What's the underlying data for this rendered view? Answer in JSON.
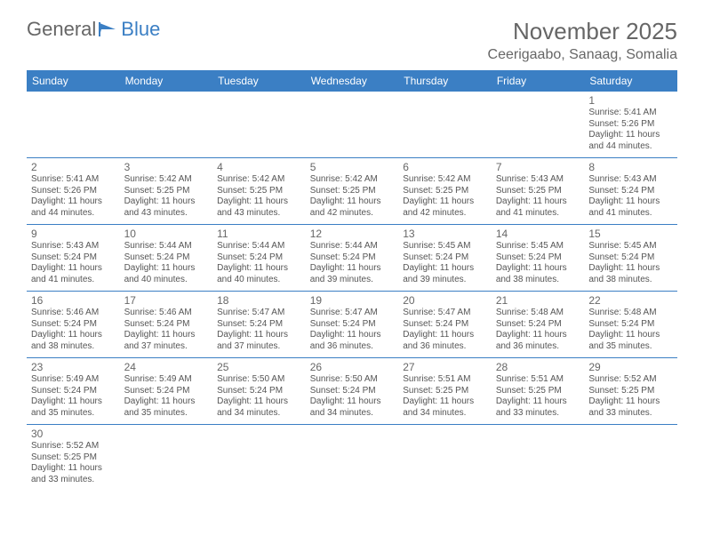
{
  "logo": {
    "text1": "General",
    "text2": "Blue"
  },
  "title": "November 2025",
  "location": "Ceerigaabo, Sanaag, Somalia",
  "colors": {
    "header_bg": "#3b7fc4",
    "header_text": "#ffffff",
    "cell_border": "#3b7fc4",
    "text": "#555555",
    "title": "#666666"
  },
  "dayHeaders": [
    "Sunday",
    "Monday",
    "Tuesday",
    "Wednesday",
    "Thursday",
    "Friday",
    "Saturday"
  ],
  "weeks": [
    [
      null,
      null,
      null,
      null,
      null,
      null,
      {
        "n": "1",
        "sr": "Sunrise: 5:41 AM",
        "ss": "Sunset: 5:26 PM",
        "dl": "Daylight: 11 hours and 44 minutes."
      }
    ],
    [
      {
        "n": "2",
        "sr": "Sunrise: 5:41 AM",
        "ss": "Sunset: 5:26 PM",
        "dl": "Daylight: 11 hours and 44 minutes."
      },
      {
        "n": "3",
        "sr": "Sunrise: 5:42 AM",
        "ss": "Sunset: 5:25 PM",
        "dl": "Daylight: 11 hours and 43 minutes."
      },
      {
        "n": "4",
        "sr": "Sunrise: 5:42 AM",
        "ss": "Sunset: 5:25 PM",
        "dl": "Daylight: 11 hours and 43 minutes."
      },
      {
        "n": "5",
        "sr": "Sunrise: 5:42 AM",
        "ss": "Sunset: 5:25 PM",
        "dl": "Daylight: 11 hours and 42 minutes."
      },
      {
        "n": "6",
        "sr": "Sunrise: 5:42 AM",
        "ss": "Sunset: 5:25 PM",
        "dl": "Daylight: 11 hours and 42 minutes."
      },
      {
        "n": "7",
        "sr": "Sunrise: 5:43 AM",
        "ss": "Sunset: 5:25 PM",
        "dl": "Daylight: 11 hours and 41 minutes."
      },
      {
        "n": "8",
        "sr": "Sunrise: 5:43 AM",
        "ss": "Sunset: 5:24 PM",
        "dl": "Daylight: 11 hours and 41 minutes."
      }
    ],
    [
      {
        "n": "9",
        "sr": "Sunrise: 5:43 AM",
        "ss": "Sunset: 5:24 PM",
        "dl": "Daylight: 11 hours and 41 minutes."
      },
      {
        "n": "10",
        "sr": "Sunrise: 5:44 AM",
        "ss": "Sunset: 5:24 PM",
        "dl": "Daylight: 11 hours and 40 minutes."
      },
      {
        "n": "11",
        "sr": "Sunrise: 5:44 AM",
        "ss": "Sunset: 5:24 PM",
        "dl": "Daylight: 11 hours and 40 minutes."
      },
      {
        "n": "12",
        "sr": "Sunrise: 5:44 AM",
        "ss": "Sunset: 5:24 PM",
        "dl": "Daylight: 11 hours and 39 minutes."
      },
      {
        "n": "13",
        "sr": "Sunrise: 5:45 AM",
        "ss": "Sunset: 5:24 PM",
        "dl": "Daylight: 11 hours and 39 minutes."
      },
      {
        "n": "14",
        "sr": "Sunrise: 5:45 AM",
        "ss": "Sunset: 5:24 PM",
        "dl": "Daylight: 11 hours and 38 minutes."
      },
      {
        "n": "15",
        "sr": "Sunrise: 5:45 AM",
        "ss": "Sunset: 5:24 PM",
        "dl": "Daylight: 11 hours and 38 minutes."
      }
    ],
    [
      {
        "n": "16",
        "sr": "Sunrise: 5:46 AM",
        "ss": "Sunset: 5:24 PM",
        "dl": "Daylight: 11 hours and 38 minutes."
      },
      {
        "n": "17",
        "sr": "Sunrise: 5:46 AM",
        "ss": "Sunset: 5:24 PM",
        "dl": "Daylight: 11 hours and 37 minutes."
      },
      {
        "n": "18",
        "sr": "Sunrise: 5:47 AM",
        "ss": "Sunset: 5:24 PM",
        "dl": "Daylight: 11 hours and 37 minutes."
      },
      {
        "n": "19",
        "sr": "Sunrise: 5:47 AM",
        "ss": "Sunset: 5:24 PM",
        "dl": "Daylight: 11 hours and 36 minutes."
      },
      {
        "n": "20",
        "sr": "Sunrise: 5:47 AM",
        "ss": "Sunset: 5:24 PM",
        "dl": "Daylight: 11 hours and 36 minutes."
      },
      {
        "n": "21",
        "sr": "Sunrise: 5:48 AM",
        "ss": "Sunset: 5:24 PM",
        "dl": "Daylight: 11 hours and 36 minutes."
      },
      {
        "n": "22",
        "sr": "Sunrise: 5:48 AM",
        "ss": "Sunset: 5:24 PM",
        "dl": "Daylight: 11 hours and 35 minutes."
      }
    ],
    [
      {
        "n": "23",
        "sr": "Sunrise: 5:49 AM",
        "ss": "Sunset: 5:24 PM",
        "dl": "Daylight: 11 hours and 35 minutes."
      },
      {
        "n": "24",
        "sr": "Sunrise: 5:49 AM",
        "ss": "Sunset: 5:24 PM",
        "dl": "Daylight: 11 hours and 35 minutes."
      },
      {
        "n": "25",
        "sr": "Sunrise: 5:50 AM",
        "ss": "Sunset: 5:24 PM",
        "dl": "Daylight: 11 hours and 34 minutes."
      },
      {
        "n": "26",
        "sr": "Sunrise: 5:50 AM",
        "ss": "Sunset: 5:24 PM",
        "dl": "Daylight: 11 hours and 34 minutes."
      },
      {
        "n": "27",
        "sr": "Sunrise: 5:51 AM",
        "ss": "Sunset: 5:25 PM",
        "dl": "Daylight: 11 hours and 34 minutes."
      },
      {
        "n": "28",
        "sr": "Sunrise: 5:51 AM",
        "ss": "Sunset: 5:25 PM",
        "dl": "Daylight: 11 hours and 33 minutes."
      },
      {
        "n": "29",
        "sr": "Sunrise: 5:52 AM",
        "ss": "Sunset: 5:25 PM",
        "dl": "Daylight: 11 hours and 33 minutes."
      }
    ],
    [
      {
        "n": "30",
        "sr": "Sunrise: 5:52 AM",
        "ss": "Sunset: 5:25 PM",
        "dl": "Daylight: 11 hours and 33 minutes."
      },
      null,
      null,
      null,
      null,
      null,
      null
    ]
  ]
}
